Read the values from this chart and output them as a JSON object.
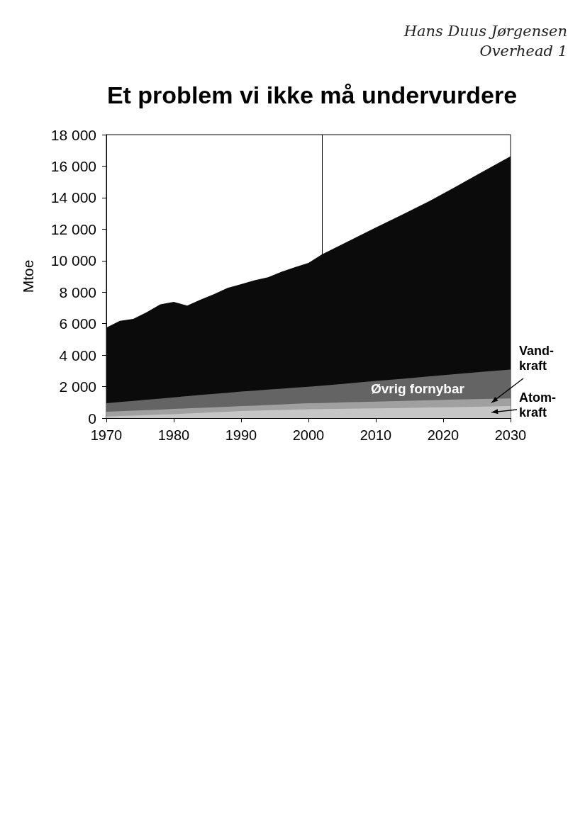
{
  "chart_data": {
    "type": "area",
    "title": "Et problem vi ikke må undervurdere",
    "ylabel": "Mtoe",
    "annotations": [
      "Hans Duus Jørgensen",
      "Overhead 1"
    ],
    "stacked": true,
    "x": [
      1970,
      1972,
      1974,
      1976,
      1978,
      1980,
      1982,
      1984,
      1986,
      1988,
      1990,
      1992,
      1994,
      1996,
      1998,
      2000,
      2002,
      2006,
      2010,
      2014,
      2018,
      2022,
      2026,
      2030
    ],
    "series": [
      {
        "name": "Atom-kraft",
        "color": "#c6c6c6",
        "values": [
          100,
          130,
          160,
          190,
          220,
          250,
          290,
          330,
          370,
          410,
          450,
          470,
          490,
          520,
          540,
          560,
          570,
          600,
          620,
          640,
          670,
          700,
          730,
          760
        ]
      },
      {
        "name": "Vand-kraft",
        "color": "#a0a0a0",
        "values": [
          300,
          310,
          310,
          320,
          320,
          330,
          330,
          320,
          320,
          310,
          310,
          320,
          340,
          350,
          370,
          380,
          390,
          410,
          430,
          450,
          470,
          480,
          490,
          490
        ]
      },
      {
        "name": "Øvrig fornybar",
        "color": "#646464",
        "values": [
          540,
          580,
          620,
          660,
          700,
          740,
          780,
          820,
          850,
          890,
          930,
          950,
          980,
          1000,
          1030,
          1050,
          1100,
          1200,
          1310,
          1410,
          1520,
          1620,
          1730,
          1830
        ]
      },
      {
        "color": "#0b0b0b",
        "values": [
          4810,
          5160,
          5210,
          5560,
          5980,
          6060,
          5740,
          6060,
          6340,
          6660,
          6810,
          7010,
          7130,
          7420,
          7650,
          7860,
          8340,
          9040,
          9740,
          10440,
          11130,
          11930,
          12730,
          13550
        ]
      }
    ],
    "xlim": [
      1970,
      2030
    ],
    "xticks": [
      1970,
      1980,
      1990,
      2000,
      2010,
      2020,
      2030
    ],
    "ylim": [
      0,
      18000
    ],
    "yticks": [
      0,
      {
        "value": 2000,
        "label": "2 000"
      },
      {
        "value": 4000,
        "label": "4 000"
      },
      {
        "value": 6000,
        "label": "6 000"
      },
      {
        "value": 8000,
        "label": "8 000"
      },
      {
        "value": 10000,
        "label": "10 000"
      },
      {
        "value": 12000,
        "label": "12 000"
      },
      {
        "value": 14000,
        "label": "14 000"
      },
      {
        "value": 16000,
        "label": "16 000"
      },
      {
        "value": 18000,
        "label": "18 000"
      }
    ],
    "ref_lines": [
      {
        "axis": "x",
        "value": 2002,
        "color": "#000000"
      }
    ],
    "grid": false
  }
}
